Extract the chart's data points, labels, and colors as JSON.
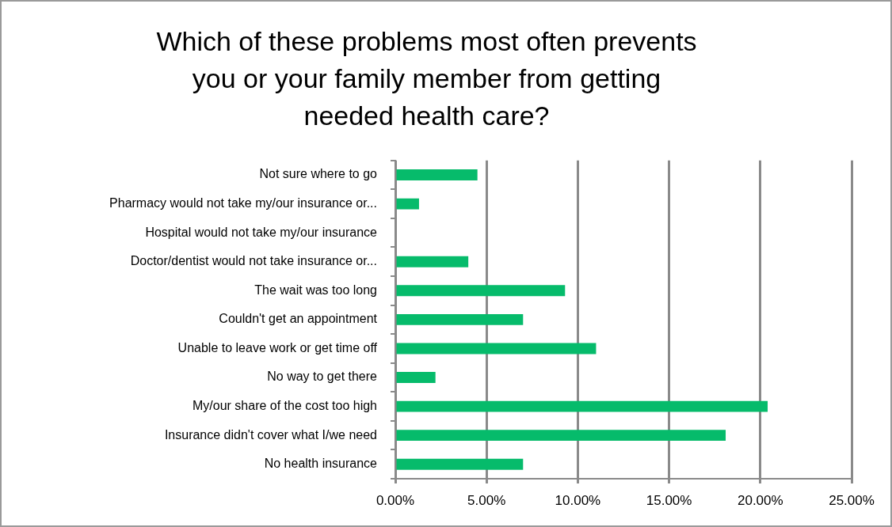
{
  "chart_data": {
    "type": "bar",
    "orientation": "horizontal",
    "title": "Which of these problems most often prevents\nyou or your family member from getting\nneeded health care?",
    "categories": [
      "Not sure where to go",
      "Pharmacy would not take my/our insurance or...",
      "Hospital would not take my/our insurance",
      "Doctor/dentist would not take insurance or...",
      "The wait was too long",
      "Couldn't get an appointment",
      "Unable to leave work or get time off",
      "No way to get there",
      "My/our share of the cost too high",
      "Insurance didn't cover what I/we need",
      "No health insurance"
    ],
    "values": [
      4.5,
      1.3,
      0,
      4.0,
      9.3,
      7.0,
      11.0,
      2.2,
      20.4,
      18.1,
      7.0
    ],
    "color": "#06bb6b",
    "xlim": [
      0,
      25
    ],
    "xticks": [
      {
        "value": 0,
        "label": "0.00%"
      },
      {
        "value": 5,
        "label": "5.00%"
      },
      {
        "value": 10,
        "label": "10.00%"
      },
      {
        "value": 15,
        "label": "15.00%"
      },
      {
        "value": 20,
        "label": "20.00%"
      },
      {
        "value": 25,
        "label": "25.00%"
      }
    ],
    "grid": "x"
  }
}
